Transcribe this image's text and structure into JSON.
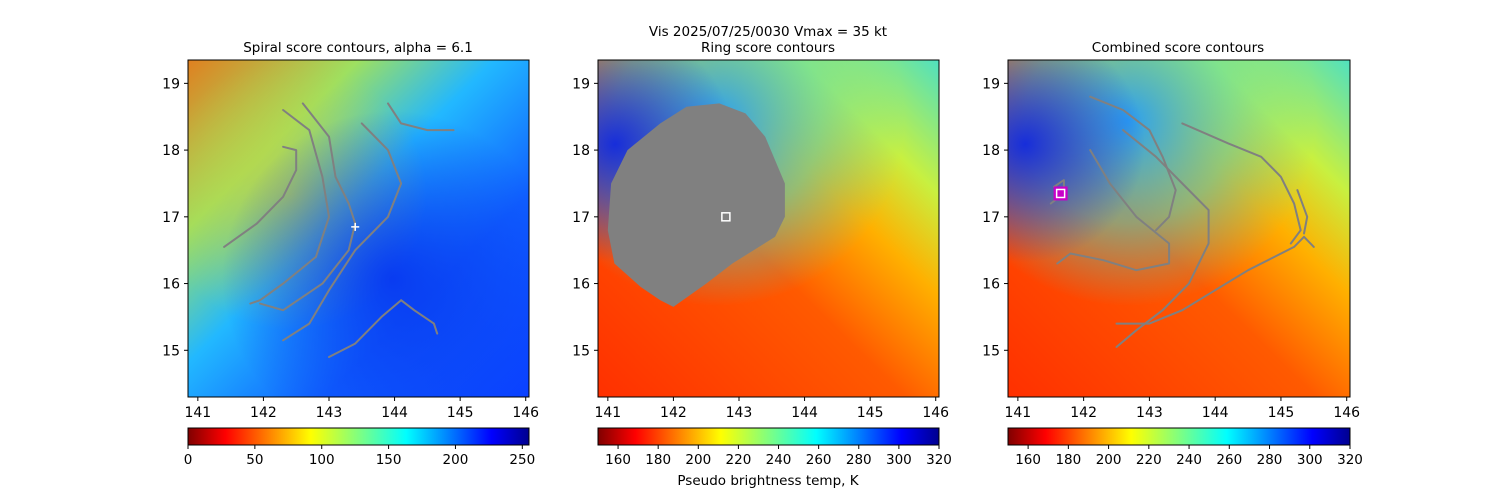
{
  "figure": {
    "suptitle": "Vis  2025/07/25/0030    Vmax = 35 kt",
    "colorbar_label": "Pseudo brightness temp, K",
    "colors": {
      "contour": "#808080",
      "ring_fill": "#808080",
      "center_marker": "#ffffff",
      "combined_marker": "#c800c8"
    }
  },
  "chart_data": [
    {
      "type": "heatmap",
      "title": "Spiral score contours, alpha =  6.1",
      "xlim": [
        140.85,
        146.05
      ],
      "ylim": [
        14.3,
        19.35
      ],
      "xticks": [
        141,
        142,
        143,
        144,
        145,
        146
      ],
      "yticks": [
        15,
        16,
        17,
        18,
        19
      ],
      "colormap": "jet_r",
      "colorbar": {
        "min": 0,
        "max": 255,
        "ticks": [
          0,
          50,
          100,
          150,
          200,
          250
        ]
      },
      "center_marker": {
        "lon": 143.4,
        "lat": 16.85,
        "symbol": "+"
      },
      "contours": [
        [
          [
            141.4,
            16.55
          ],
          [
            141.9,
            16.9
          ],
          [
            142.3,
            17.3
          ],
          [
            142.5,
            17.7
          ],
          [
            142.5,
            18.0
          ],
          [
            142.3,
            18.05
          ]
        ],
        [
          [
            142.3,
            18.6
          ],
          [
            142.7,
            18.3
          ],
          [
            142.9,
            17.6
          ],
          [
            143.0,
            17.0
          ],
          [
            142.8,
            16.4
          ],
          [
            142.3,
            16.0
          ],
          [
            141.95,
            15.75
          ],
          [
            141.8,
            15.7
          ]
        ],
        [
          [
            142.6,
            18.7
          ],
          [
            143.0,
            18.2
          ],
          [
            143.1,
            17.6
          ],
          [
            143.3,
            17.2
          ],
          [
            143.4,
            16.9
          ],
          [
            143.3,
            16.5
          ],
          [
            142.9,
            16.0
          ],
          [
            142.3,
            15.6
          ],
          [
            141.95,
            15.7
          ]
        ],
        [
          [
            143.5,
            18.4
          ],
          [
            143.9,
            18.0
          ],
          [
            144.1,
            17.5
          ],
          [
            143.9,
            17.0
          ],
          [
            143.4,
            16.5
          ],
          [
            143.0,
            15.9
          ],
          [
            142.7,
            15.4
          ],
          [
            142.3,
            15.15
          ]
        ],
        [
          [
            143.0,
            14.9
          ],
          [
            143.4,
            15.1
          ],
          [
            143.8,
            15.5
          ],
          [
            144.1,
            15.75
          ],
          [
            144.3,
            15.6
          ],
          [
            144.6,
            15.4
          ],
          [
            144.65,
            15.25
          ]
        ],
        [
          [
            143.9,
            18.7
          ],
          [
            144.1,
            18.4
          ],
          [
            144.5,
            18.3
          ],
          [
            144.9,
            18.3
          ]
        ]
      ]
    },
    {
      "type": "heatmap",
      "title": "Ring score contours",
      "xlim": [
        140.85,
        146.05
      ],
      "ylim": [
        14.3,
        19.35
      ],
      "xticks": [
        141,
        142,
        143,
        144,
        145,
        146
      ],
      "yticks": [
        15,
        16,
        17,
        18,
        19
      ],
      "colormap": "jet_r",
      "colorbar": {
        "min": 150,
        "max": 320,
        "ticks": [
          160,
          180,
          200,
          220,
          240,
          260,
          280,
          300,
          320
        ]
      },
      "center_marker": {
        "lon": 142.8,
        "lat": 17.0,
        "symbol": "square"
      },
      "filled_region": [
        [
          142.7,
          18.7
        ],
        [
          143.1,
          18.55
        ],
        [
          143.4,
          18.2
        ],
        [
          143.7,
          17.5
        ],
        [
          143.7,
          17.0
        ],
        [
          143.55,
          16.7
        ],
        [
          142.9,
          16.3
        ],
        [
          142.5,
          16.0
        ],
        [
          142.0,
          15.65
        ],
        [
          141.8,
          15.75
        ],
        [
          141.5,
          15.95
        ],
        [
          141.1,
          16.3
        ],
        [
          141.0,
          16.8
        ],
        [
          141.05,
          17.5
        ],
        [
          141.3,
          18.0
        ],
        [
          141.8,
          18.4
        ],
        [
          142.2,
          18.65
        ]
      ]
    },
    {
      "type": "heatmap",
      "title": "Combined score contours",
      "xlim": [
        140.85,
        146.05
      ],
      "ylim": [
        14.3,
        19.35
      ],
      "xticks": [
        141,
        142,
        143,
        144,
        145,
        146
      ],
      "yticks": [
        15,
        16,
        17,
        18,
        19
      ],
      "colormap": "jet_r",
      "colorbar": {
        "min": 150,
        "max": 320,
        "ticks": [
          160,
          180,
          200,
          220,
          240,
          260,
          280,
          300,
          320
        ]
      },
      "center_marker": {
        "lon": 141.65,
        "lat": 17.35,
        "symbol": "square"
      },
      "contours": [
        [
          [
            141.5,
            17.2
          ],
          [
            141.7,
            17.35
          ],
          [
            141.7,
            17.55
          ],
          [
            141.55,
            17.45
          ]
        ],
        [
          [
            141.6,
            16.3
          ],
          [
            141.8,
            16.45
          ],
          [
            142.3,
            16.35
          ],
          [
            142.8,
            16.2
          ],
          [
            143.3,
            16.3
          ],
          [
            143.3,
            16.6
          ],
          [
            142.8,
            17.0
          ],
          [
            142.4,
            17.5
          ],
          [
            142.1,
            18.0
          ]
        ],
        [
          [
            142.1,
            18.8
          ],
          [
            142.6,
            18.6
          ],
          [
            143.0,
            18.3
          ],
          [
            143.2,
            17.9
          ],
          [
            143.4,
            17.4
          ],
          [
            143.3,
            17.0
          ],
          [
            143.1,
            16.8
          ]
        ],
        [
          [
            142.6,
            18.3
          ],
          [
            143.1,
            17.9
          ],
          [
            143.5,
            17.5
          ],
          [
            143.9,
            17.1
          ],
          [
            143.9,
            16.6
          ],
          [
            143.6,
            16.0
          ],
          [
            143.2,
            15.6
          ],
          [
            142.8,
            15.3
          ],
          [
            142.5,
            15.05
          ]
        ],
        [
          [
            142.5,
            15.4
          ],
          [
            143.0,
            15.4
          ],
          [
            143.5,
            15.6
          ],
          [
            144.0,
            15.9
          ],
          [
            144.5,
            16.2
          ],
          [
            144.9,
            16.4
          ],
          [
            145.2,
            16.55
          ],
          [
            145.35,
            16.7
          ],
          [
            145.5,
            16.55
          ]
        ],
        [
          [
            143.5,
            18.4
          ],
          [
            144.2,
            18.1
          ],
          [
            144.7,
            17.9
          ],
          [
            145.0,
            17.6
          ],
          [
            145.2,
            17.2
          ],
          [
            145.3,
            16.8
          ],
          [
            145.15,
            16.6
          ]
        ],
        [
          [
            145.25,
            17.4
          ],
          [
            145.4,
            17.0
          ],
          [
            145.35,
            16.75
          ]
        ]
      ]
    }
  ]
}
